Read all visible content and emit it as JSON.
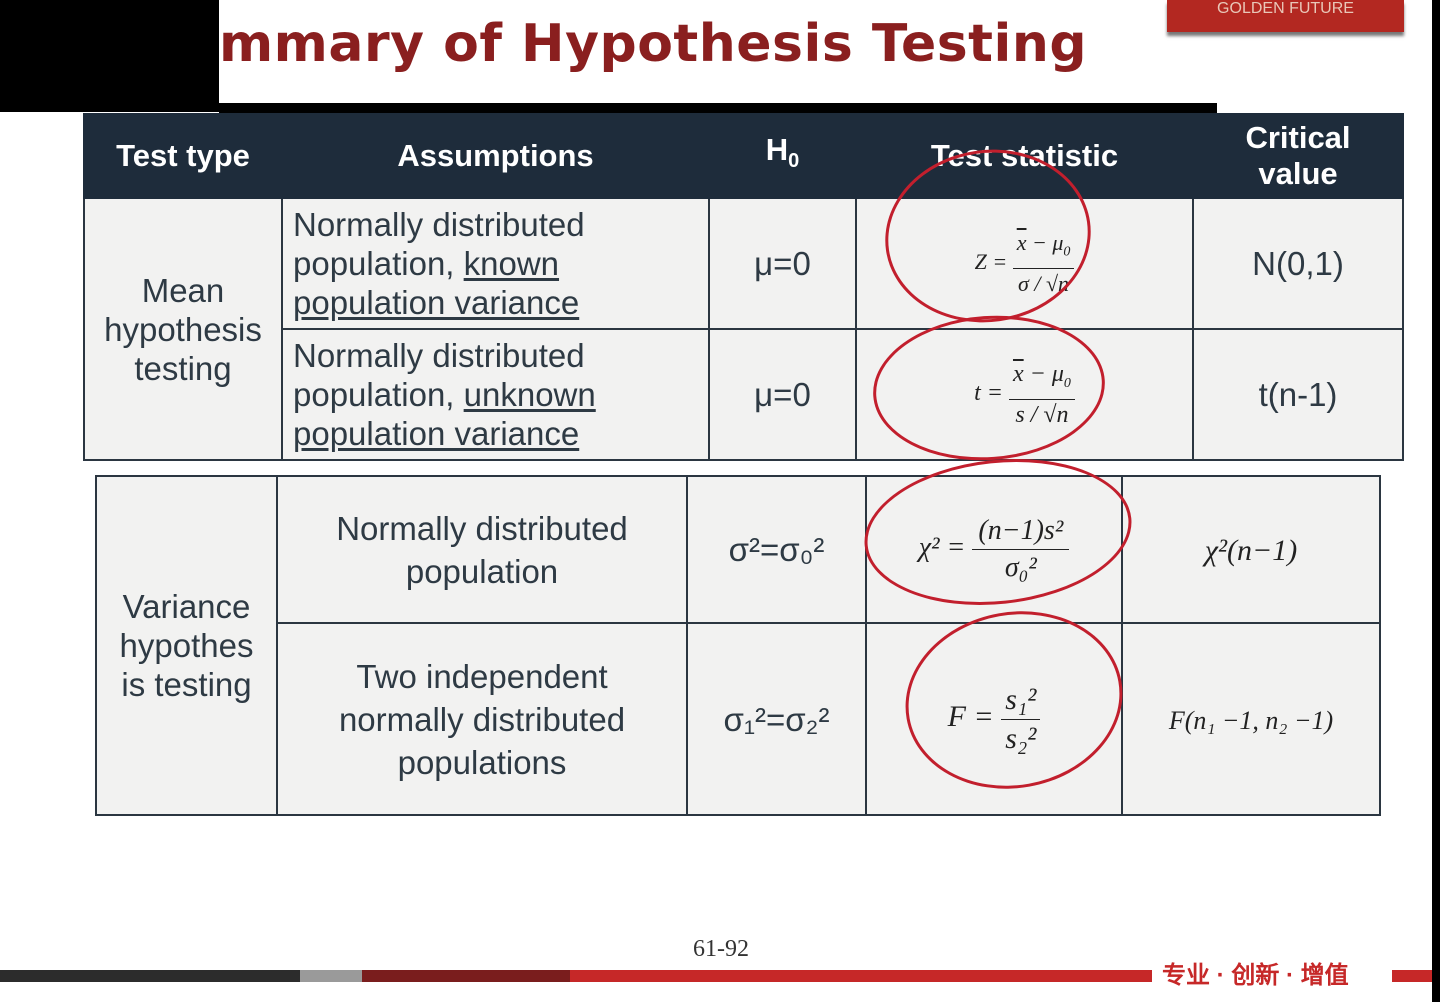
{
  "slide": {
    "title": "mmary of Hypothesis Testing",
    "logo_text": "GOLDEN FUTURE",
    "page_number": "61-92",
    "slogan": "专业 · 创新 · 增值",
    "accent_color": "#8a1f1f",
    "header_color": "#1e2c3b",
    "annotation_color": "#c21f2d"
  },
  "table": {
    "headers": {
      "test_type": "Test type",
      "assumptions": "Assumptions",
      "h0_main": "H",
      "h0_sub": "0",
      "test_statistic": "Test statistic",
      "critical_line1": "Critical",
      "critical_line2": "value"
    },
    "mean": {
      "label": "Mean hypothesis testing",
      "row1": {
        "assume_a": "Normally distributed population, ",
        "assume_b": "known",
        "assume_c": "population variance",
        "h0": "μ=0",
        "stat_lhs": "Z =",
        "stat_num_a": "x",
        "stat_num_b": " − μ",
        "stat_num_sub": "0",
        "stat_den": "σ / √n",
        "critical": "N(0,1)"
      },
      "row2": {
        "assume_a": "Normally distributed population, ",
        "assume_b": "unknown",
        "assume_c": "population variance",
        "h0": "μ=0",
        "stat_lhs": "t =",
        "stat_num_a": "x",
        "stat_num_b": " − μ",
        "stat_num_sub": "0",
        "stat_den": "s / √n",
        "critical": "t(n-1)"
      }
    },
    "variance": {
      "label": "Variance hypothes is testing",
      "row1": {
        "assume": "Normally distributed population",
        "h0": "σ²=σ₀²",
        "stat_lhs": "χ² =",
        "stat_num": "(n−1)s²",
        "stat_den": "σ₀²",
        "critical": "χ²(n−1)"
      },
      "row2": {
        "assume": "Two independent normally distributed populations",
        "h0": "σ₁²=σ₂²",
        "stat_lhs": "F =",
        "stat_num": "s₁²",
        "stat_den": "s₂²",
        "critical": "F(n₁ −1, n₂ −1)"
      }
    }
  }
}
